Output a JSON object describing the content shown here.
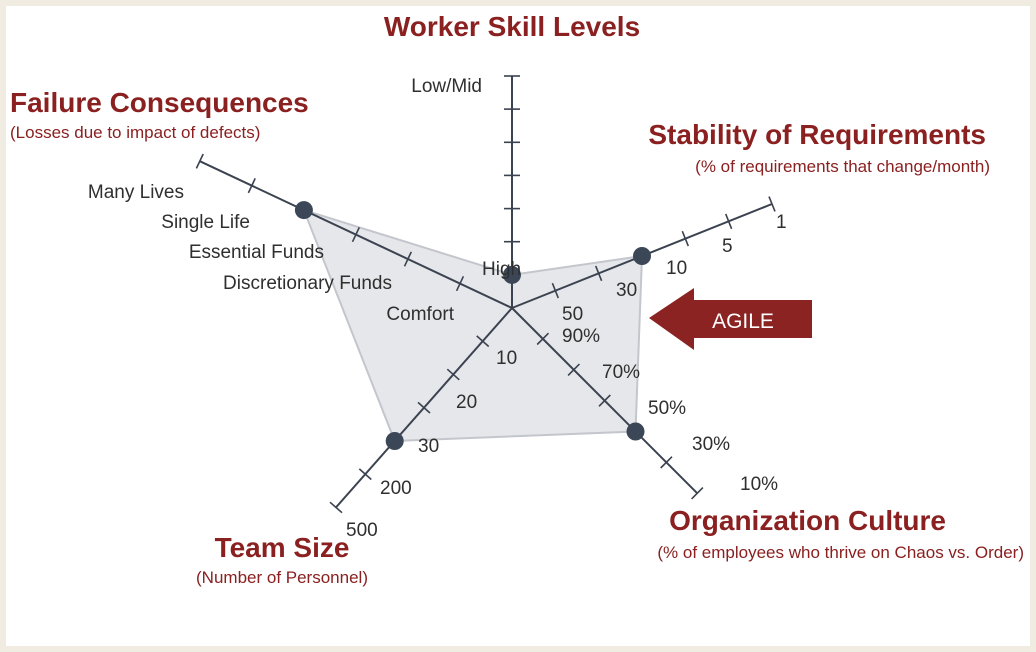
{
  "diagram": {
    "axes": {
      "worker_skill": {
        "title": "Worker Skill Levels",
        "subtitle": "",
        "labels": [
          "Low/Mid",
          "High"
        ],
        "value_level": 1
      },
      "requirements": {
        "title": "Stability of Requirements",
        "subtitle": "(% of requirements that change/month)",
        "labels": [
          "1",
          "5",
          "10",
          "30",
          "50"
        ],
        "value_level": 3
      },
      "culture": {
        "title": "Organization Culture",
        "subtitle": "(% of employees who thrive on Chaos vs. Order)",
        "labels": [
          "10%",
          "30%",
          "50%",
          "70%",
          "90%"
        ],
        "value_level": 4
      },
      "team_size": {
        "title": "Team Size",
        "subtitle": "(Number of Personnel)",
        "labels": [
          "500",
          "200",
          "30",
          "20",
          "10"
        ],
        "value_level": 4
      },
      "failure": {
        "title": "Failure Consequences",
        "subtitle": "(Losses due to impact of defects)",
        "labels": [
          "Many Lives",
          "Single Life",
          "Essential Funds",
          "Discretionary Funds",
          "Comfort"
        ],
        "value_level": 4
      }
    },
    "callout": {
      "label": "AGILE",
      "color": "#8b2323"
    },
    "colors": {
      "title": "#8a2020",
      "axis": "#3b4250",
      "polygon_fill": "#e6e7ea",
      "dot": "#3b4756",
      "frame": "#f0ece2"
    }
  }
}
